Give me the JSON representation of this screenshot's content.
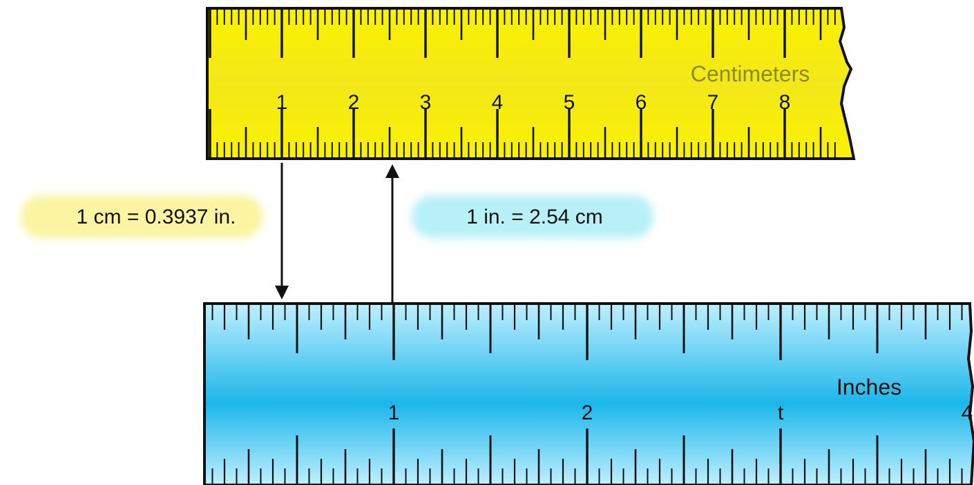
{
  "colors": {
    "cm_ruler_top": "#fbf200",
    "cm_ruler_mid": "#f2e81a",
    "cm_ruler_label": "#8c8a1c",
    "in_ruler_top": "#bfefff",
    "in_ruler_mid": "#1cb6ea",
    "cm_box": "#fbf4a0",
    "in_box": "#b8f0f8",
    "ink": "#111111"
  },
  "cm_ruler": {
    "title": "Centimeters",
    "numbers": [
      "1",
      "2",
      "3",
      "4",
      "5",
      "6",
      "7",
      "8"
    ],
    "unit_count": 8,
    "subdivisions_per_unit": 10
  },
  "in_ruler": {
    "title": "Inches",
    "numbers": [
      "1",
      "2",
      "t",
      "4"
    ],
    "unit_count": 4,
    "subdivisions_per_unit": 16
  },
  "conversions": {
    "cm_to_in": "1 cm = 0.3937 in.",
    "in_to_cm": "1 in. = 2.54 cm"
  },
  "icons": {
    "down_arrow": "arrow-down-icon",
    "up_arrow": "arrow-up-icon"
  }
}
